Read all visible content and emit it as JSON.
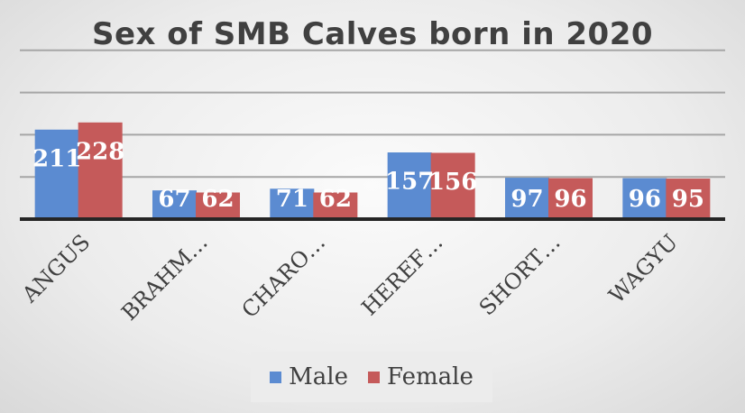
{
  "chart_data": {
    "type": "bar",
    "title": "Sex of SMB Calves born in 2020",
    "categories": [
      "ANGUS",
      "BRAHM…",
      "CHARO…",
      "HEREF…",
      "SHORT…",
      "WAGYU"
    ],
    "series": [
      {
        "name": "Male",
        "color": "#5b8bd1",
        "values": [
          211,
          67,
          71,
          157,
          97,
          96
        ]
      },
      {
        "name": "Female",
        "color": "#c55a5a",
        "values": [
          228,
          62,
          62,
          156,
          96,
          95
        ]
      }
    ],
    "ylim": [
      0,
      500
    ],
    "grid": true,
    "legend": "bottom"
  }
}
